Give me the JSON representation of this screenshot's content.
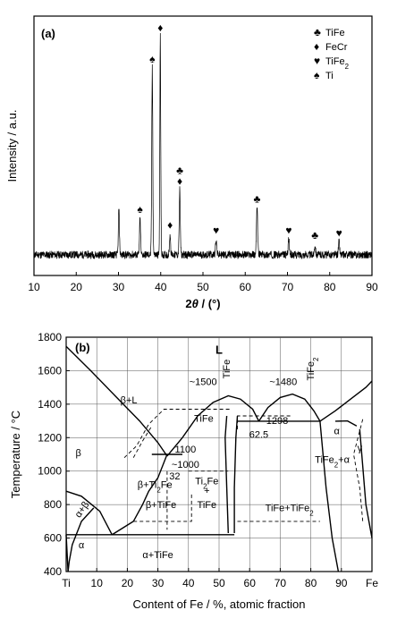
{
  "chart_data": [
    {
      "type": "line",
      "panel_label": "(a)",
      "xlabel_pre": "2",
      "xlabel_sym": "θ",
      "xlabel_post": " / (°)",
      "ylabel": "Intensity / a.u.",
      "xlim": [
        10,
        90
      ],
      "xticks": [
        10,
        20,
        30,
        40,
        50,
        60,
        70,
        80,
        90
      ],
      "y_numeric_ticks": false,
      "baseline": 0.08,
      "peaks": [
        {
          "x": 30.1,
          "h": 0.18,
          "w": 0.35
        },
        {
          "x": 35.1,
          "h": 0.14,
          "w": 0.35
        },
        {
          "x": 38.0,
          "h": 0.72,
          "w": 0.35
        },
        {
          "x": 39.9,
          "h": 0.84,
          "w": 0.3
        },
        {
          "x": 42.2,
          "h": 0.08,
          "w": 0.35
        },
        {
          "x": 44.5,
          "h": 0.25,
          "w": 0.35
        },
        {
          "x": 53.1,
          "h": 0.06,
          "w": 0.4
        },
        {
          "x": 62.8,
          "h": 0.18,
          "w": 0.4
        },
        {
          "x": 70.3,
          "h": 0.06,
          "w": 0.4
        },
        {
          "x": 76.5,
          "h": 0.04,
          "w": 0.4
        },
        {
          "x": 82.2,
          "h": 0.05,
          "w": 0.4
        }
      ],
      "markers": [
        {
          "x": 35.1,
          "symbol": "♠"
        },
        {
          "x": 38.0,
          "symbol": "♠"
        },
        {
          "x": 39.9,
          "symbol": "♦"
        },
        {
          "x": 42.2,
          "symbol": "♦"
        },
        {
          "x": 44.5,
          "symbol": "♦"
        },
        {
          "x": 44.5,
          "symbol": "♣"
        },
        {
          "x": 53.1,
          "symbol": "♥"
        },
        {
          "x": 62.8,
          "symbol": "♣"
        },
        {
          "x": 70.3,
          "symbol": "♥"
        },
        {
          "x": 76.5,
          "symbol": "♣"
        },
        {
          "x": 82.2,
          "symbol": "♥"
        }
      ],
      "legend": [
        {
          "symbol": "♣",
          "label": "TiFe",
          "sub": ""
        },
        {
          "symbol": "♦",
          "label": "FeCr",
          "sub": ""
        },
        {
          "symbol": "♥",
          "label": "TiFe",
          "sub": "2"
        },
        {
          "symbol": "♠",
          "label": "Ti",
          "sub": ""
        }
      ]
    },
    {
      "type": "line",
      "subtype": "phase-diagram",
      "panel_label": "(b)",
      "xlabel": "Content of Fe / %, atomic fraction",
      "ylabel": "Temperature / °C",
      "xlim": [
        0,
        100
      ],
      "ylim": [
        400,
        1800
      ],
      "xticks": [
        0,
        10,
        20,
        30,
        40,
        50,
        60,
        70,
        80,
        90,
        100
      ],
      "xtick_labels": [
        "Ti",
        "10",
        "20",
        "30",
        "40",
        "50",
        "60",
        "70",
        "80",
        "90",
        "Fe"
      ],
      "yticks": [
        400,
        600,
        800,
        1000,
        1200,
        1400,
        1600,
        1800
      ],
      "grid": true,
      "lines_solid": [
        [
          [
            0,
            1745
          ],
          [
            8,
            1600
          ],
          [
            16,
            1450
          ],
          [
            24,
            1300
          ],
          [
            30,
            1170
          ],
          [
            33,
            1090
          ]
        ],
        [
          [
            33,
            1090
          ],
          [
            38,
            1200
          ],
          [
            43,
            1330
          ],
          [
            48,
            1410
          ],
          [
            53,
            1450
          ],
          [
            57,
            1430
          ],
          [
            61,
            1370
          ],
          [
            63,
            1298
          ]
        ],
        [
          [
            63,
            1298
          ],
          [
            66,
            1380
          ],
          [
            70,
            1440
          ],
          [
            74,
            1460
          ],
          [
            78,
            1430
          ],
          [
            81,
            1360
          ],
          [
            83,
            1298
          ]
        ],
        [
          [
            83,
            1298
          ],
          [
            88,
            1360
          ],
          [
            93,
            1430
          ],
          [
            98,
            1500
          ],
          [
            100,
            1538
          ]
        ],
        [
          [
            28,
            1100
          ],
          [
            33,
            1100
          ],
          [
            38,
            1100
          ]
        ],
        [
          [
            0,
            620
          ],
          [
            55,
            620
          ]
        ],
        [
          [
            0,
            880
          ],
          [
            5,
            850
          ],
          [
            11,
            760
          ],
          [
            15,
            620
          ]
        ],
        [
          [
            22,
            700
          ],
          [
            25,
            800
          ],
          [
            27,
            880
          ],
          [
            30,
            960
          ],
          [
            33,
            1100
          ]
        ],
        [
          [
            15,
            620
          ],
          [
            22,
            700
          ]
        ],
        [
          [
            53,
            630
          ],
          [
            52.5,
            900
          ],
          [
            52,
            1200
          ],
          [
            52.5,
            1330
          ]
        ],
        [
          [
            55,
            630
          ],
          [
            55,
            900
          ],
          [
            55.5,
            1200
          ],
          [
            56,
            1330
          ]
        ],
        [
          [
            56,
            1298
          ],
          [
            83,
            1298
          ]
        ],
        [
          [
            83,
            1298
          ],
          [
            85,
            900
          ],
          [
            87,
            600
          ],
          [
            89,
            400
          ]
        ],
        [
          [
            88,
            1298
          ],
          [
            92,
            1300
          ],
          [
            95,
            1270
          ]
        ],
        [
          [
            0.6,
            400
          ],
          [
            1,
            460
          ],
          [
            2,
            560
          ],
          [
            5,
            700
          ],
          [
            9,
            780
          ]
        ],
        [
          [
            0,
            620
          ],
          [
            0.6,
            400
          ]
        ],
        [
          [
            96,
            1250
          ],
          [
            98,
            800
          ],
          [
            100,
            600
          ]
        ]
      ],
      "lines_dashed": [
        [
          [
            19,
            1080
          ],
          [
            23,
            1150
          ],
          [
            27,
            1280
          ],
          [
            32,
            1370
          ],
          [
            42,
            1370
          ],
          [
            54,
            1370
          ]
        ],
        [
          [
            22,
            1080
          ],
          [
            25,
            1180
          ],
          [
            28,
            1270
          ]
        ],
        [
          [
            33,
            1000
          ],
          [
            33,
            650
          ]
        ],
        [
          [
            22,
            700
          ],
          [
            41,
            700
          ],
          [
            41,
            860
          ]
        ],
        [
          [
            40,
            1000
          ],
          [
            53,
            1000
          ]
        ],
        [
          [
            56,
            700
          ],
          [
            83,
            700
          ]
        ],
        [
          [
            97,
            1310
          ],
          [
            94,
            1100
          ],
          [
            96,
            900
          ],
          [
            97,
            700
          ]
        ],
        [
          [
            56,
            1250
          ],
          [
            56,
            1330
          ],
          [
            74,
            1330
          ]
        ]
      ],
      "labels": [
        {
          "x": 50,
          "y": 1700,
          "text": "L",
          "bold": true
        },
        {
          "x": 20.5,
          "y": 1405,
          "text": "β+L"
        },
        {
          "x": 4,
          "y": 1090,
          "text": "β"
        },
        {
          "x": 45,
          "y": 1295,
          "text": "TiFe"
        },
        {
          "x": 44.8,
          "y": 1515,
          "text": "~1500"
        },
        {
          "x": 53.5,
          "y": 1610,
          "text": "TiFe",
          "rotate": true
        },
        {
          "x": 71,
          "y": 1515,
          "text": "~1480"
        },
        {
          "x": 81,
          "y": 1610,
          "text": "TiFe",
          "sub": "2",
          "rotate": true
        },
        {
          "x": 69,
          "y": 1282,
          "text": "1298"
        },
        {
          "x": 63,
          "y": 1198,
          "text": "62.5"
        },
        {
          "x": 39,
          "y": 1110,
          "text": "1100"
        },
        {
          "x": 39,
          "y": 1020,
          "text": "~1000"
        },
        {
          "x": 35.5,
          "y": 950,
          "text": "32"
        },
        {
          "x": 29,
          "y": 900,
          "text": "β+Ti",
          "sub": "2",
          "after": "Fe"
        },
        {
          "x": 46,
          "y": 920,
          "text": "Ti",
          "sub": "2",
          "after": "Fe"
        },
        {
          "x": 46,
          "y": 865,
          "text": "+"
        },
        {
          "x": 46,
          "y": 780,
          "text": "TiFe"
        },
        {
          "x": 31,
          "y": 780,
          "text": "β+TiFe"
        },
        {
          "x": 6,
          "y": 760,
          "text": "α+β",
          "rotate_deg": -55
        },
        {
          "x": 5,
          "y": 540,
          "text": "α"
        },
        {
          "x": 30,
          "y": 480,
          "text": "α+TiFe"
        },
        {
          "x": 88.5,
          "y": 1220,
          "text": "α"
        },
        {
          "x": 96,
          "y": 1120,
          "text": "γ"
        },
        {
          "x": 87,
          "y": 1050,
          "text": "TiFe",
          "sub": "2",
          "after": "+α"
        },
        {
          "x": 73,
          "y": 760,
          "text": "TiFe+TiFe",
          "sub": "2"
        }
      ]
    }
  ]
}
